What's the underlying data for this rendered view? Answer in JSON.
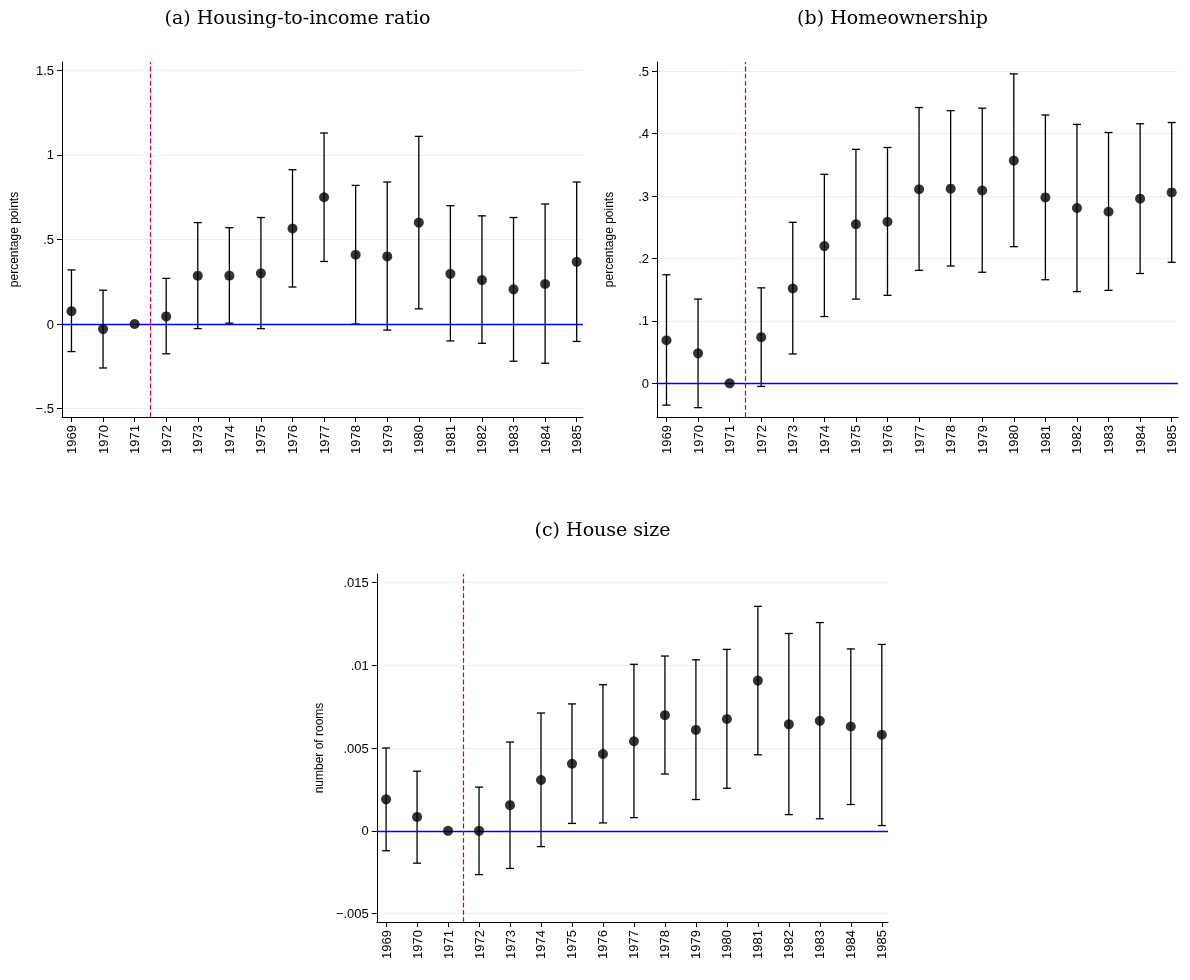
{
  "chart_data": [
    {
      "type": "scatter",
      "title": "(a) Housing-to-income ratio",
      "ylabel": "percentage points",
      "x": [
        1969,
        1970,
        1971,
        1972,
        1973,
        1974,
        1975,
        1976,
        1977,
        1978,
        1979,
        1980,
        1981,
        1982,
        1983,
        1984,
        1985
      ],
      "series": [
        {
          "color": "#000000",
          "values": [
            0.076,
            -0.03,
            0,
            0.045,
            0.286,
            0.286,
            0.3,
            0.565,
            0.75,
            0.41,
            0.4,
            0.6,
            0.297,
            0.26,
            0.205,
            0.237,
            0.368
          ],
          "errors": [
            [
              -0.163,
              0.32
            ],
            [
              -0.26,
              0.2
            ],
            null,
            [
              -0.176,
              0.27
            ],
            [
              -0.027,
              0.6
            ],
            [
              0.005,
              0.57
            ],
            [
              -0.027,
              0.63
            ],
            [
              0.219,
              0.913
            ],
            [
              0.37,
              1.13
            ],
            [
              0,
              0.82
            ],
            [
              -0.036,
              0.84
            ],
            [
              0.09,
              1.11
            ],
            [
              -0.1,
              0.7
            ],
            [
              -0.114,
              0.64
            ],
            [
              -0.22,
              0.63
            ],
            [
              -0.232,
              0.71
            ],
            [
              -0.103,
              0.84
            ]
          ]
        }
      ],
      "xlim": [
        1968.7,
        1985.2
      ],
      "xticks": [
        1969,
        1970,
        1971,
        1972,
        1973,
        1974,
        1975,
        1976,
        1977,
        1978,
        1979,
        1980,
        1981,
        1982,
        1983,
        1984,
        1985
      ],
      "ylim": [
        -0.55,
        1.55
      ],
      "yticks": [
        {
          "value": -0.5,
          "label": "−.5"
        },
        0,
        {
          "value": 0.5,
          "label": ".5"
        },
        1,
        1.5
      ],
      "ref_lines": [
        {
          "axis": "y",
          "value": 0,
          "color": "#0000ff",
          "line_style": "solid"
        },
        {
          "axis": "x",
          "value": 1971.5,
          "color": "#cc0033",
          "line_style": "dashed"
        }
      ],
      "grid": "y",
      "marker": "circle"
    },
    {
      "type": "scatter",
      "title": "(b) Homeownership",
      "ylabel": "percentage points",
      "x": [
        1969,
        1970,
        1971,
        1972,
        1973,
        1974,
        1975,
        1976,
        1977,
        1978,
        1979,
        1980,
        1981,
        1982,
        1983,
        1984,
        1985
      ],
      "series": [
        {
          "color": "#000000",
          "values": [
            0.069,
            0.048,
            0,
            0.074,
            0.152,
            0.22,
            0.255,
            0.259,
            0.311,
            0.312,
            0.309,
            0.357,
            0.298,
            0.281,
            0.275,
            0.296,
            0.306
          ],
          "errors": [
            [
              -0.035,
              0.174
            ],
            [
              -0.039,
              0.135
            ],
            null,
            [
              -0.005,
              0.153
            ],
            [
              0.047,
              0.258
            ],
            [
              0.107,
              0.335
            ],
            [
              0.135,
              0.375
            ],
            [
              0.141,
              0.378
            ],
            [
              0.181,
              0.442
            ],
            [
              0.188,
              0.437
            ],
            [
              0.178,
              0.441
            ],
            [
              0.219,
              0.496
            ],
            [
              0.166,
              0.43
            ],
            [
              0.147,
              0.415
            ],
            [
              0.149,
              0.402
            ],
            [
              0.176,
              0.416
            ],
            [
              0.194,
              0.418
            ]
          ]
        }
      ],
      "xlim": [
        1968.7,
        1985.2
      ],
      "xticks": [
        1969,
        1970,
        1971,
        1972,
        1973,
        1974,
        1975,
        1976,
        1977,
        1978,
        1979,
        1980,
        1981,
        1982,
        1983,
        1984,
        1985
      ],
      "ylim": [
        -0.054,
        0.515
      ],
      "yticks": [
        0,
        {
          "value": 0.1,
          "label": ".1"
        },
        {
          "value": 0.2,
          "label": ".2"
        },
        {
          "value": 0.3,
          "label": ".3"
        },
        {
          "value": 0.4,
          "label": ".4"
        },
        {
          "value": 0.5,
          "label": ".5"
        }
      ],
      "ref_lines": [
        {
          "axis": "y",
          "value": 0,
          "color": "#0000ff",
          "line_style": "solid"
        },
        {
          "axis": "x",
          "value": 1971.5,
          "color": "#cc0033",
          "line_style": "dashed"
        }
      ],
      "grid": "y",
      "marker": "circle"
    },
    {
      "type": "scatter",
      "title": "(c) House size",
      "ylabel": "number of rooms",
      "x": [
        1969,
        1970,
        1971,
        1972,
        1973,
        1974,
        1975,
        1976,
        1977,
        1978,
        1979,
        1980,
        1981,
        1982,
        1983,
        1984,
        1985
      ],
      "series": [
        {
          "color": "#000000",
          "values": [
            0.0019,
            0.00084,
            0,
            0,
            0.00155,
            0.00307,
            0.00405,
            0.00464,
            0.00541,
            0.00698,
            0.00609,
            0.00675,
            0.00907,
            0.00643,
            0.00664,
            0.0063,
            0.0058
          ],
          "errors": [
            [
              -0.0012,
              0.005
            ],
            [
              -0.00195,
              0.0036
            ],
            null,
            [
              -0.00264,
              0.00264
            ],
            [
              -0.00227,
              0.00536
            ],
            [
              -0.00095,
              0.00711
            ],
            [
              0.00045,
              0.00766
            ],
            [
              0.00048,
              0.00882
            ],
            [
              0.0008,
              0.01005
            ],
            [
              0.00343,
              0.01055
            ],
            [
              0.00189,
              0.01032
            ],
            [
              0.00257,
              0.01095
            ],
            [
              0.00459,
              0.01355
            ],
            [
              0.00098,
              0.01191
            ],
            [
              0.00073,
              0.01257
            ],
            [
              0.00159,
              0.01098
            ],
            [
              0.00032,
              0.01125
            ]
          ]
        }
      ],
      "xlim": [
        1968.7,
        1985.2
      ],
      "xticks": [
        1969,
        1970,
        1971,
        1972,
        1973,
        1974,
        1975,
        1976,
        1977,
        1978,
        1979,
        1980,
        1981,
        1982,
        1983,
        1984,
        1985
      ],
      "ylim": [
        -0.0055,
        0.0155
      ],
      "yticks": [
        {
          "value": -0.005,
          "label": "−.005"
        },
        0,
        {
          "value": 0.005,
          "label": ".005"
        },
        {
          "value": 0.01,
          "label": ".01"
        },
        {
          "value": 0.015,
          "label": ".015"
        }
      ],
      "ref_lines": [
        {
          "axis": "y",
          "value": 0,
          "color": "#0000ff",
          "line_style": "solid"
        },
        {
          "axis": "x",
          "value": 1971.5,
          "color": "#cc0033",
          "line_style": "dashed"
        }
      ],
      "grid": "y",
      "marker": "circle"
    }
  ]
}
